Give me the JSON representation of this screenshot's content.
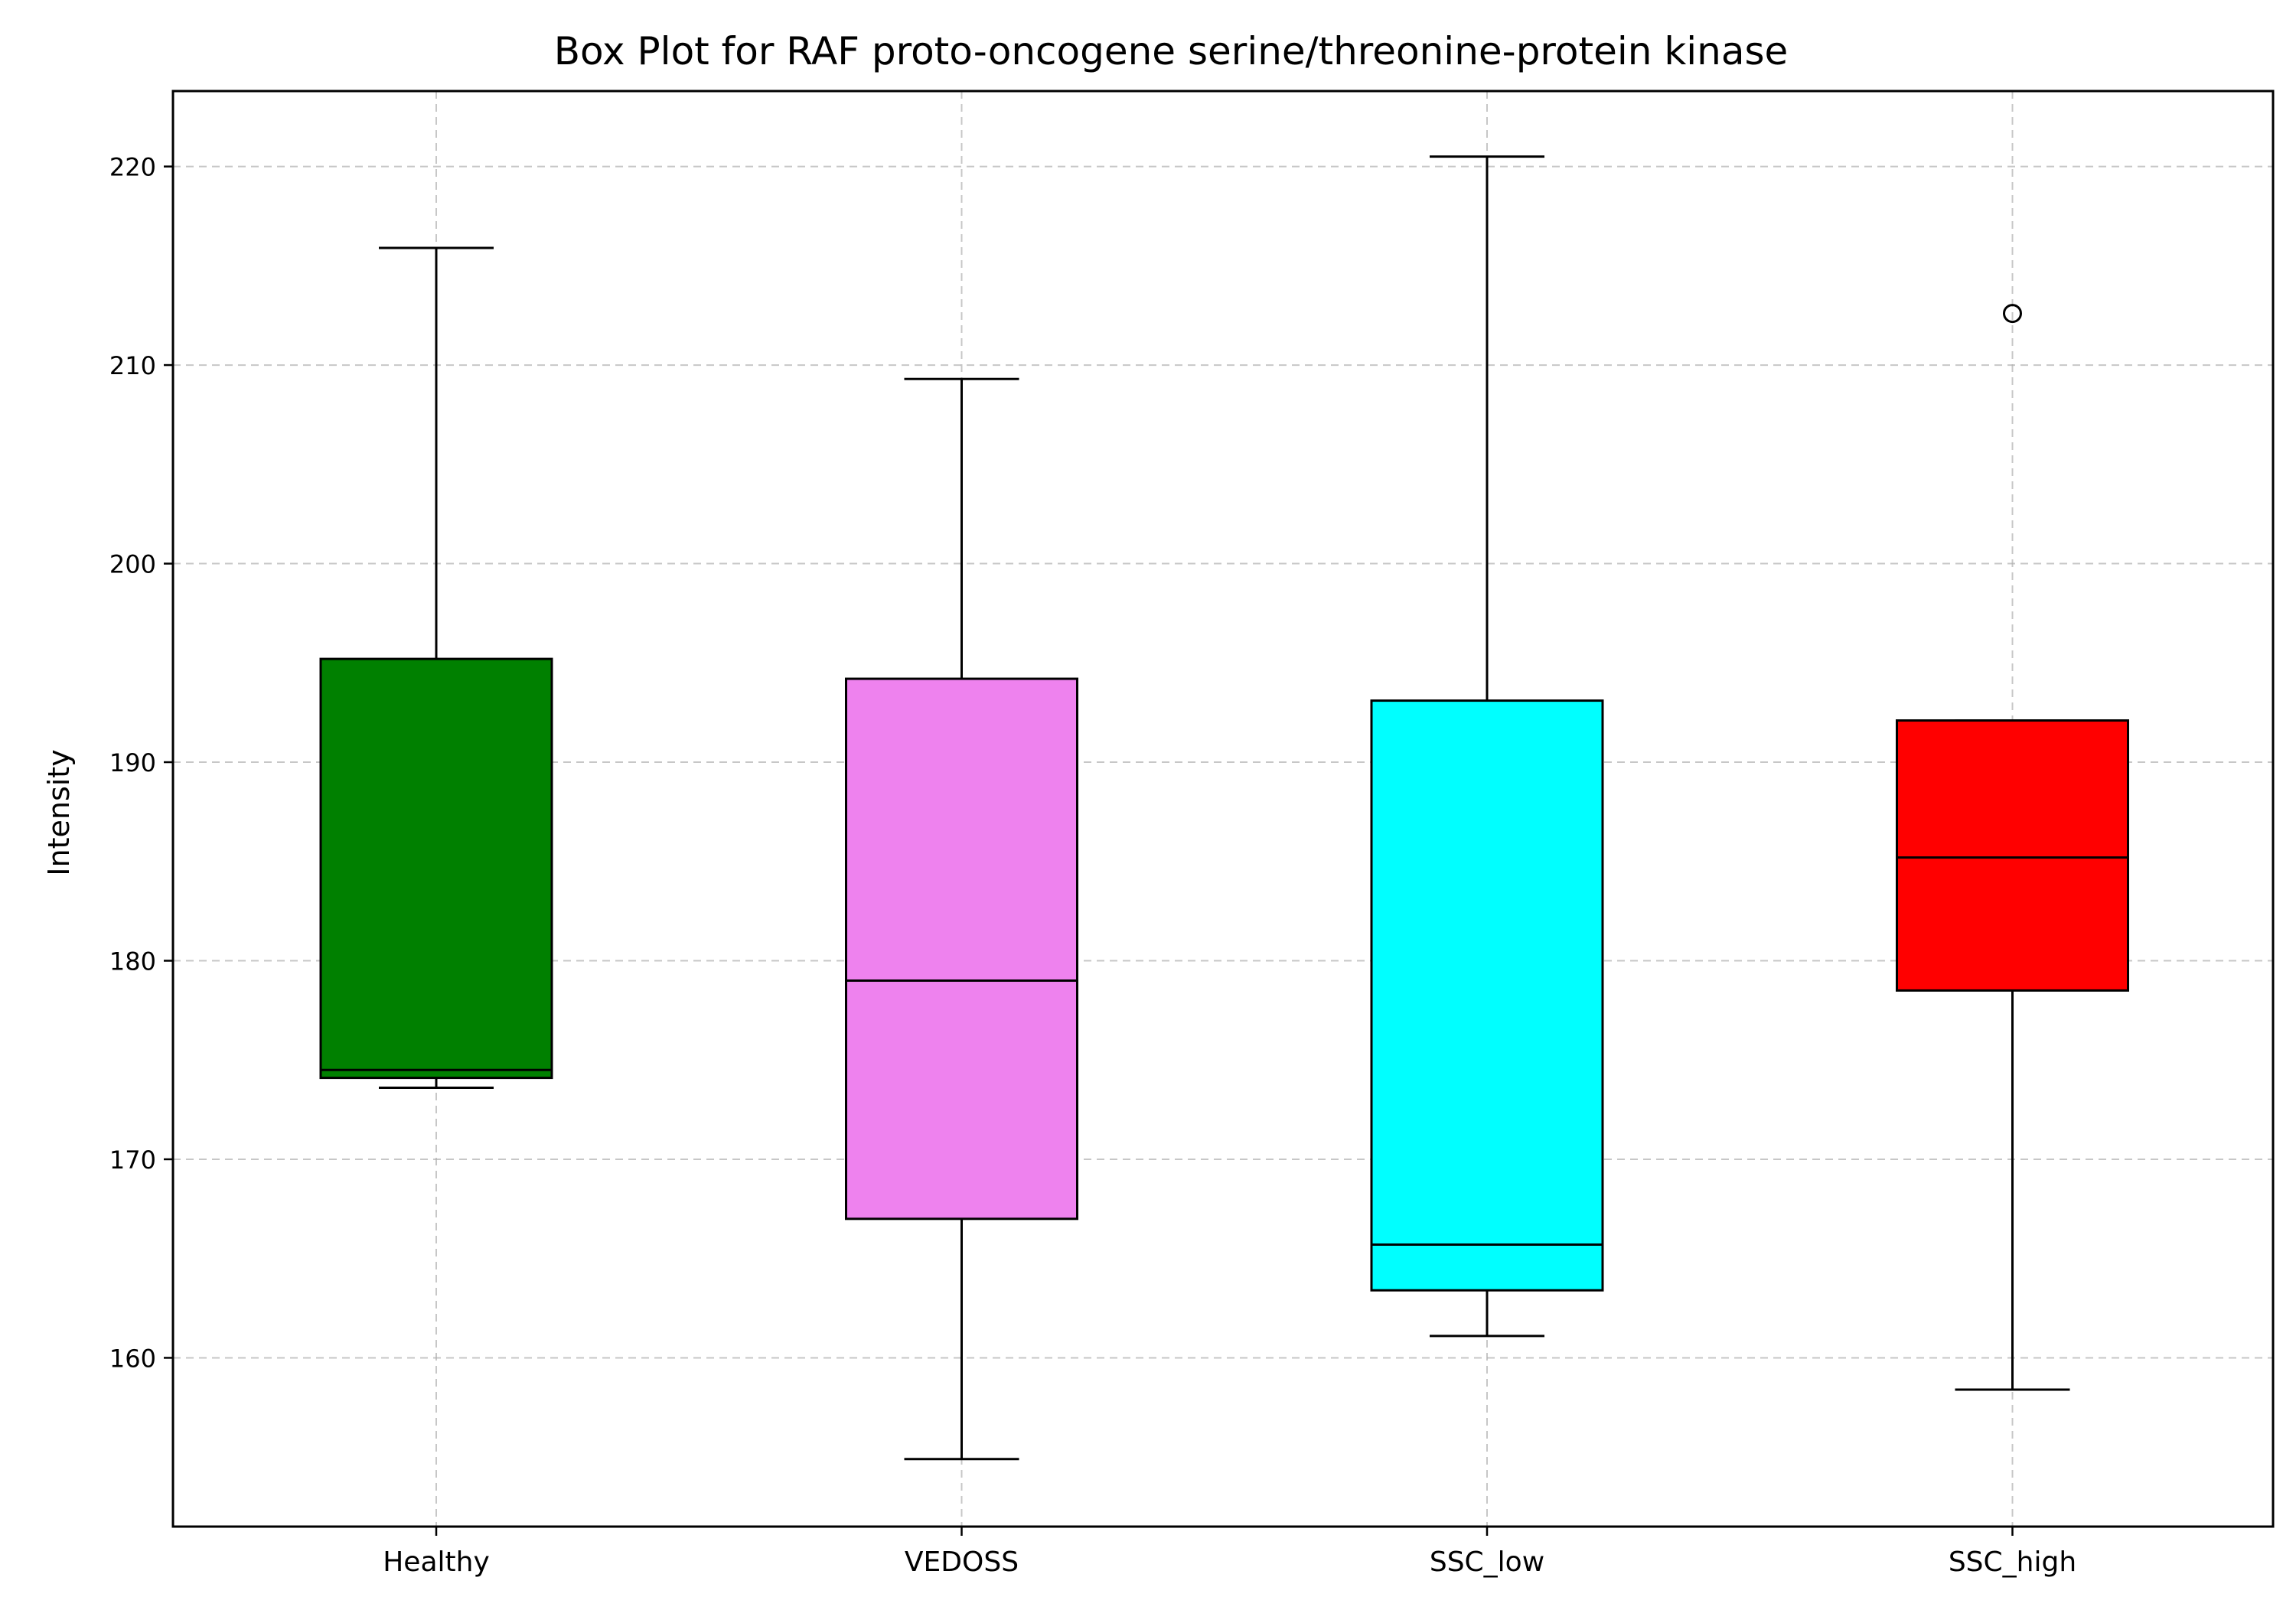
{
  "chart_data": {
    "type": "box",
    "title": "Box Plot for RAF proto-oncogene serine/threonine-protein kinase",
    "xlabel": "",
    "ylabel": "Intensity",
    "ylim": [
      151.5,
      223.8
    ],
    "yticks": [
      160,
      170,
      180,
      190,
      200,
      210,
      220
    ],
    "grid": true,
    "categories": [
      "Healthy",
      "VEDOSS",
      "SSC_low",
      "SSC_high"
    ],
    "boxes": [
      {
        "category": "Healthy",
        "whisker_low": 173.6,
        "q1": 174.1,
        "median": 174.5,
        "q3": 195.2,
        "whisker_high": 215.9,
        "outliers": [],
        "color": "#008000"
      },
      {
        "category": "VEDOSS",
        "whisker_low": 154.9,
        "q1": 167.0,
        "median": 179.0,
        "q3": 194.2,
        "whisker_high": 209.3,
        "outliers": [],
        "color": "#ee82ee"
      },
      {
        "category": "SSC_low",
        "whisker_low": 161.1,
        "q1": 163.4,
        "median": 165.7,
        "q3": 193.1,
        "whisker_high": 220.5,
        "outliers": [],
        "color": "#00ffff"
      },
      {
        "category": "SSC_high",
        "whisker_low": 158.4,
        "q1": 178.5,
        "median": 185.2,
        "q3": 192.1,
        "whisker_high": 192.1,
        "outliers": [
          212.6
        ],
        "color": "#ff0000"
      }
    ]
  }
}
